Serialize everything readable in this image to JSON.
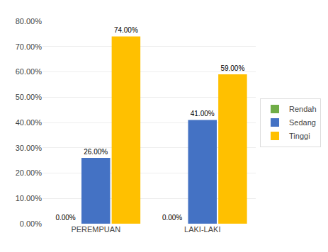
{
  "chart_data": {
    "type": "bar",
    "categories": [
      "PEREMPUAN",
      "LAKI-LAKI"
    ],
    "series": [
      {
        "name": "Rendah",
        "color": "#70ad47",
        "values": [
          0.0,
          0.0
        ],
        "value_labels": [
          "0.00%",
          "0.00%"
        ]
      },
      {
        "name": "Sedang",
        "color": "#4472c4",
        "values": [
          0.26,
          0.41
        ],
        "value_labels": [
          "26.00%",
          "41.00%"
        ]
      },
      {
        "name": "Tinggi",
        "color": "#ffc000",
        "values": [
          0.74,
          0.59
        ],
        "value_labels": [
          "74.00%",
          "59.00%"
        ]
      }
    ],
    "ylim": [
      0,
      0.8
    ],
    "yticks": [
      {
        "value": 0.0,
        "label": "0.00%"
      },
      {
        "value": 0.1,
        "label": "10.00%"
      },
      {
        "value": 0.2,
        "label": "20.00%"
      },
      {
        "value": 0.3,
        "label": "30.00%"
      },
      {
        "value": 0.4,
        "label": "40.00%"
      },
      {
        "value": 0.5,
        "label": "50.00%"
      },
      {
        "value": 0.6,
        "label": "60.00%"
      },
      {
        "value": 0.7,
        "label": "70.00%"
      },
      {
        "value": 0.8,
        "label": "80.00%"
      }
    ],
    "grid": true,
    "legend": "right",
    "data_labels": true
  }
}
